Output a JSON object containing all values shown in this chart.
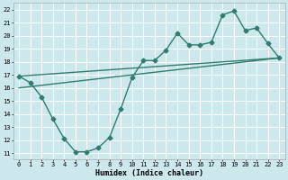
{
  "xlabel": "Humidex (Indice chaleur)",
  "xlim": [
    -0.5,
    23.5
  ],
  "ylim": [
    10.5,
    22.5
  ],
  "xticks": [
    0,
    1,
    2,
    3,
    4,
    5,
    6,
    7,
    8,
    9,
    10,
    11,
    12,
    13,
    14,
    15,
    16,
    17,
    18,
    19,
    20,
    21,
    22,
    23
  ],
  "yticks": [
    11,
    12,
    13,
    14,
    15,
    16,
    17,
    18,
    19,
    20,
    21,
    22
  ],
  "bg_color": "#cce8ec",
  "grid_color": "#ffffff",
  "line_color": "#2e7d6e",
  "line1_x": [
    0,
    1,
    2,
    3,
    4,
    5,
    6,
    7,
    8,
    9,
    10,
    11,
    12,
    13,
    14,
    15,
    16,
    17,
    18,
    19,
    20,
    21,
    22,
    23
  ],
  "line1_y": [
    16.9,
    16.4,
    15.3,
    13.6,
    12.1,
    11.1,
    11.1,
    11.4,
    12.2,
    14.4,
    16.8,
    18.1,
    18.1,
    18.9,
    20.2,
    19.3,
    19.3,
    19.5,
    21.6,
    21.9,
    20.4,
    20.6,
    19.4,
    18.3
  ],
  "line2_x": [
    0,
    23
  ],
  "line2_y": [
    16.9,
    18.3
  ],
  "line3_x": [
    0,
    23
  ],
  "line3_y": [
    16.0,
    18.3
  ],
  "marker": "D",
  "markersize": 2.5,
  "linewidth": 1.0,
  "tick_fontsize": 5.0,
  "xlabel_fontsize": 6.0
}
